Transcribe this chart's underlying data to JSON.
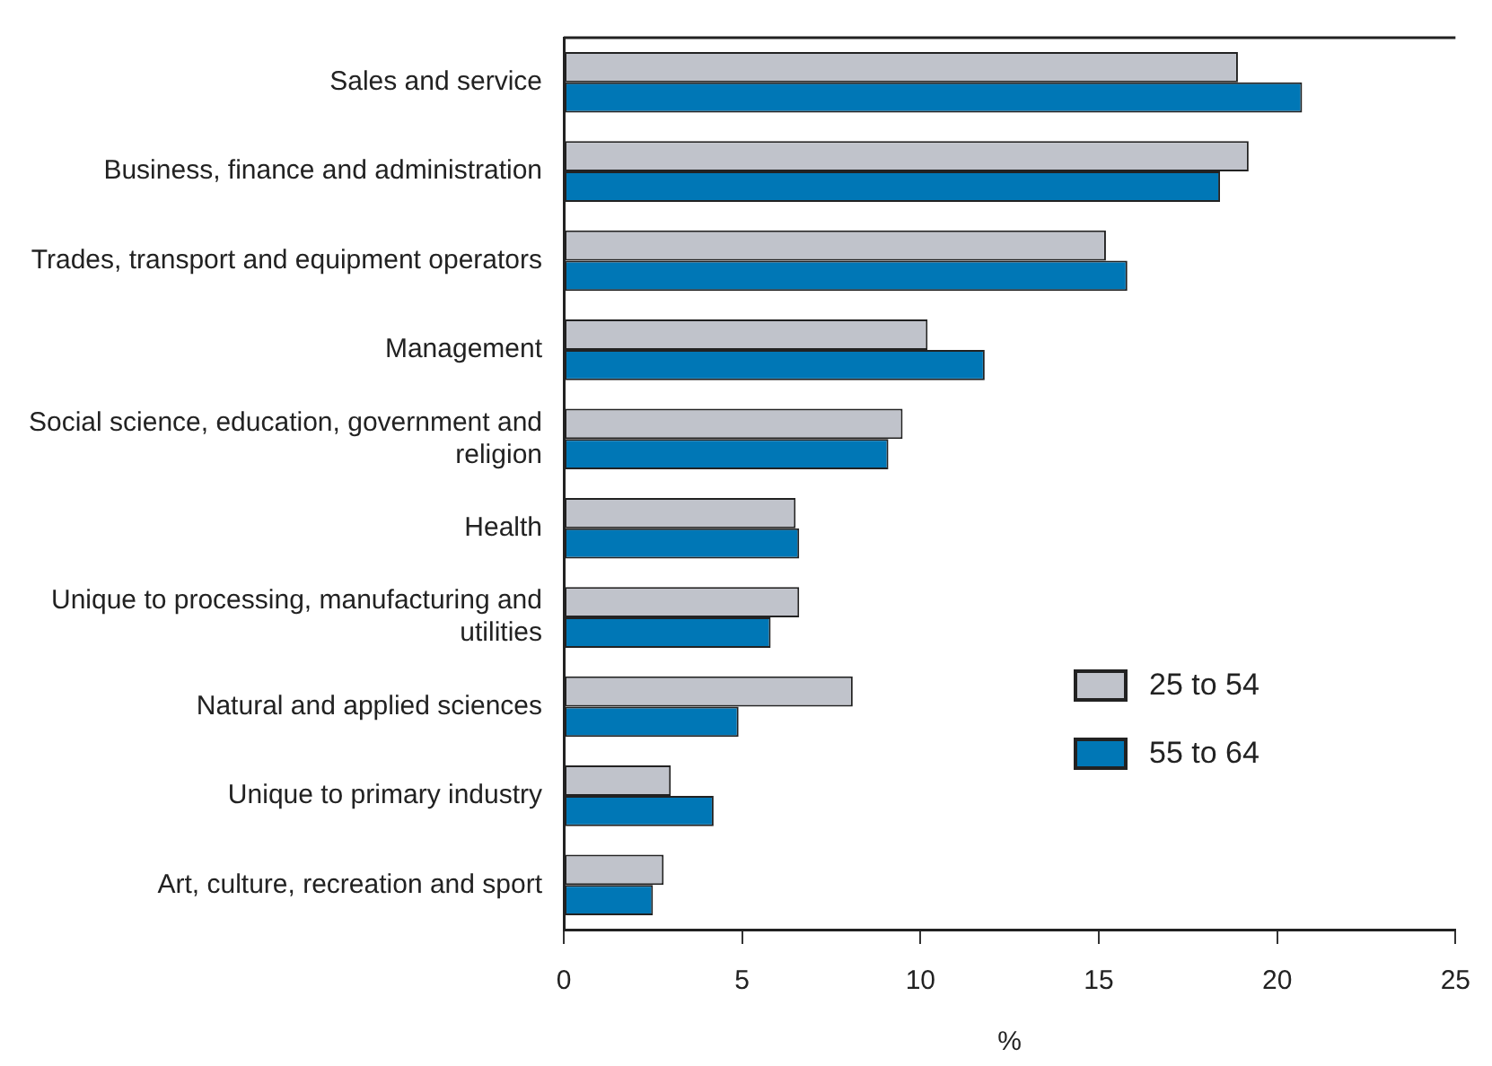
{
  "chart_data": {
    "type": "bar",
    "orientation": "horizontal",
    "xlabel": "%",
    "categories": [
      "Sales and service",
      "Business, finance and administration",
      "Trades, transport and equipment operators",
      "Management",
      "Social science, education, government and religion",
      "Health",
      "Unique to processing, manufacturing and utilities",
      "Natural and applied sciences",
      "Unique to primary industry",
      "Art, culture, recreation and sport"
    ],
    "series": [
      {
        "name": "25 to 54",
        "color": "#c0c3cb",
        "values": [
          18.9,
          19.2,
          15.2,
          10.2,
          9.5,
          6.5,
          6.6,
          8.1,
          3.0,
          2.8
        ]
      },
      {
        "name": "55 to 64",
        "color": "#0077b6",
        "values": [
          20.7,
          18.4,
          15.8,
          11.8,
          9.1,
          6.6,
          5.8,
          4.9,
          4.2,
          2.5
        ]
      }
    ],
    "xlim": [
      0,
      25
    ],
    "xticks": [
      0,
      5,
      10,
      15,
      20,
      25
    ],
    "grid": false,
    "legend": "right"
  }
}
